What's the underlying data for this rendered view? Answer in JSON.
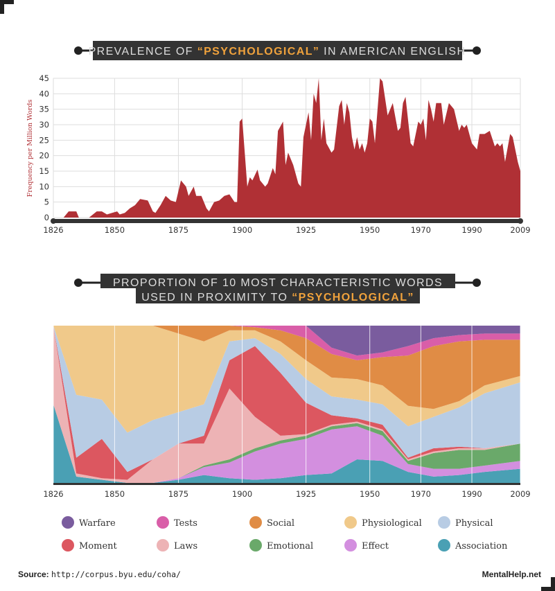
{
  "chart_data": [
    {
      "type": "area",
      "title_before": "PREVALENCE OF",
      "title_highlight": "“PSYCHOLOGICAL”",
      "title_after": "IN AMERICAN ENGLISH",
      "ylabel": "Frequency per Million Words",
      "color": "#b03035",
      "x": [
        1826,
        1830,
        1832,
        1835,
        1836,
        1840,
        1843,
        1845,
        1847,
        1849,
        1851,
        1852,
        1854,
        1856,
        1858,
        1860,
        1863,
        1865,
        1866,
        1868,
        1870,
        1872,
        1874,
        1876,
        1878,
        1879,
        1881,
        1882,
        1884,
        1886,
        1887,
        1889,
        1891,
        1893,
        1895,
        1897,
        1898,
        1899,
        1900,
        1902,
        1903,
        1904,
        1906,
        1907,
        1909,
        1910,
        1912,
        1913,
        1914,
        1916,
        1917,
        1918,
        1920,
        1922,
        1923,
        1924,
        1926,
        1927,
        1928,
        1929,
        1930,
        1931,
        1932,
        1933,
        1935,
        1936,
        1938,
        1939,
        1940,
        1941,
        1942,
        1943,
        1944,
        1945,
        1946,
        1947,
        1948,
        1949,
        1950,
        1951,
        1952,
        1954,
        1955,
        1957,
        1958,
        1959,
        1961,
        1962,
        1963,
        1964,
        1966,
        1967,
        1969,
        1970,
        1971,
        1972,
        1973,
        1974,
        1975,
        1976,
        1978,
        1979,
        1981,
        1983,
        1985,
        1986,
        1987,
        1988,
        1990,
        1992,
        1993,
        1995,
        1997,
        1999,
        2000,
        2001,
        2002,
        2003,
        2005,
        2006,
        2008,
        2009
      ],
      "values": [
        0,
        0,
        2,
        2,
        0,
        0,
        2,
        2,
        1,
        1.5,
        2,
        1,
        1.5,
        3,
        4,
        6,
        5.5,
        2,
        1.5,
        4,
        7,
        5.5,
        5,
        12,
        10,
        7,
        10,
        7,
        7,
        3,
        2,
        5,
        5.5,
        7,
        7.5,
        5,
        5,
        31,
        32,
        10,
        13,
        12,
        15.5,
        12,
        10,
        11,
        16,
        14,
        28,
        31,
        17,
        21,
        17,
        11,
        10,
        26,
        34,
        25,
        40,
        37,
        45,
        25,
        32,
        24,
        21,
        22,
        36,
        38,
        30,
        37,
        34,
        26,
        22,
        26,
        22,
        24,
        21,
        24,
        32,
        31,
        24,
        45,
        44,
        33,
        35,
        37,
        28,
        29,
        37,
        39,
        24,
        23,
        31,
        30,
        32,
        25,
        38,
        35,
        31,
        37,
        37,
        30,
        37,
        35,
        28,
        30,
        29,
        30,
        24,
        22,
        27,
        27,
        28,
        23,
        24,
        23,
        24,
        18,
        27,
        26,
        18,
        15
      ],
      "xlim": [
        1826,
        2009
      ],
      "xticks": [
        1826,
        1850,
        1875,
        1900,
        1925,
        1950,
        1970,
        1990,
        2009
      ],
      "ylim": [
        0,
        45
      ],
      "yticks": [
        0,
        5,
        10,
        15,
        20,
        25,
        30,
        35,
        40,
        45
      ],
      "grid": true
    },
    {
      "type": "stacked_area",
      "title_line1": "PROPORTION OF 10 MOST CHARACTERISTIC WORDS",
      "title_before": "USED IN PROXIMITY TO",
      "title_highlight": "“PSYCHOLOGICAL”",
      "x": [
        1826,
        1835,
        1845,
        1855,
        1865,
        1875,
        1885,
        1895,
        1905,
        1915,
        1925,
        1935,
        1945,
        1955,
        1965,
        1975,
        1985,
        1995,
        2009
      ],
      "xlim": [
        1826,
        2009
      ],
      "xticks": [
        1826,
        1850,
        1875,
        1900,
        1925,
        1950,
        1970,
        1990,
        2009
      ],
      "ylim": [
        0,
        100
      ],
      "grid": true,
      "series": [
        {
          "name": "Association",
          "color": "#4aa0b4",
          "values": [
            50,
            4,
            2,
            0,
            0,
            2,
            5,
            3,
            2,
            3,
            5,
            6,
            15,
            14,
            7,
            4,
            5,
            7,
            9
          ]
        },
        {
          "name": "Effect",
          "color": "#d38fdf",
          "values": [
            0,
            0,
            0,
            0,
            0,
            1,
            5,
            10,
            18,
            22,
            23,
            28,
            21,
            16,
            5,
            5,
            4,
            4,
            5
          ]
        },
        {
          "name": "Emotional",
          "color": "#6aa96a",
          "values": [
            0,
            0,
            0,
            0,
            0,
            0,
            1,
            2,
            2,
            2,
            2,
            2,
            2,
            3,
            2,
            10,
            12,
            10,
            11
          ]
        },
        {
          "name": "Laws",
          "color": "#edb3b5",
          "values": [
            50,
            2,
            1,
            2,
            15,
            22,
            14,
            45,
            20,
            3,
            1,
            1,
            1,
            1,
            1,
            1,
            1,
            1,
            0
          ]
        },
        {
          "name": "Moment",
          "color": "#dc5760",
          "values": [
            0,
            10,
            25,
            5,
            0,
            0,
            5,
            18,
            45,
            40,
            20,
            6,
            2,
            3,
            1,
            2,
            1,
            0,
            0
          ]
        },
        {
          "name": "Physical",
          "color": "#b8cce4",
          "values": [
            0,
            40,
            25,
            25,
            25,
            20,
            20,
            12,
            5,
            12,
            15,
            12,
            12,
            13,
            20,
            20,
            25,
            35,
            39
          ]
        },
        {
          "name": "Physiological",
          "color": "#f0c98a",
          "values": [
            0,
            44,
            47,
            68,
            60,
            50,
            40,
            7,
            5,
            8,
            12,
            12,
            13,
            12,
            13,
            5,
            4,
            5,
            4
          ]
        },
        {
          "name": "Social",
          "color": "#e08c45",
          "values": [
            0,
            0,
            0,
            0,
            0,
            5,
            10,
            3,
            2,
            7,
            14,
            15,
            12,
            18,
            32,
            40,
            38,
            29,
            23
          ]
        },
        {
          "name": "Tests",
          "color": "#d95ea8",
          "values": [
            0,
            0,
            0,
            0,
            0,
            0,
            0,
            0,
            1,
            3,
            8,
            4,
            3,
            3,
            6,
            5,
            4,
            4,
            4
          ]
        },
        {
          "name": "Warfare",
          "color": "#7a5c9e",
          "values": [
            0,
            0,
            0,
            0,
            0,
            0,
            0,
            0,
            0,
            0,
            0,
            14,
            19,
            17,
            13,
            8,
            6,
            5,
            5
          ]
        }
      ]
    }
  ],
  "footer": {
    "source_label": "Source:",
    "source_url": "http://corpus.byu.edu/coha/",
    "brand": "MentalHelp.net"
  }
}
